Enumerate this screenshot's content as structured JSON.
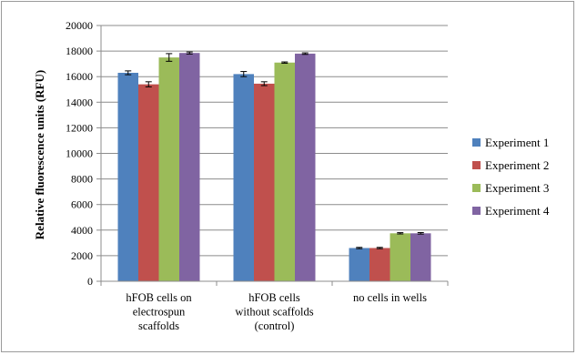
{
  "chart_data": {
    "type": "bar",
    "title": "",
    "xlabel": "",
    "ylabel": "Relative fluorescence units (RFU)",
    "ylim": [
      0,
      20000
    ],
    "yticks": [
      0,
      2000,
      4000,
      6000,
      8000,
      10000,
      12000,
      14000,
      16000,
      18000,
      20000
    ],
    "grid": true,
    "legend_position": "right",
    "categories": [
      [
        "hFOB cells on",
        "electrospun",
        "scaffolds"
      ],
      [
        "hFOB cells",
        "without scaffolds",
        "(control)"
      ],
      [
        "no cells in wells"
      ]
    ],
    "series": [
      {
        "name": "Experiment 1",
        "color": "#4f81bd",
        "values": [
          16300,
          16200,
          2600
        ],
        "errors": [
          150,
          200,
          50
        ]
      },
      {
        "name": "Experiment 2",
        "color": "#c0504d",
        "values": [
          15400,
          15450,
          2600
        ],
        "errors": [
          200,
          150,
          50
        ]
      },
      {
        "name": "Experiment 3",
        "color": "#9bbb59",
        "values": [
          17500,
          17100,
          3750
        ],
        "errors": [
          300,
          50,
          50
        ]
      },
      {
        "name": "Experiment 4",
        "color": "#8064a2",
        "values": [
          17850,
          17800,
          3750
        ],
        "errors": [
          80,
          60,
          60
        ]
      }
    ]
  }
}
